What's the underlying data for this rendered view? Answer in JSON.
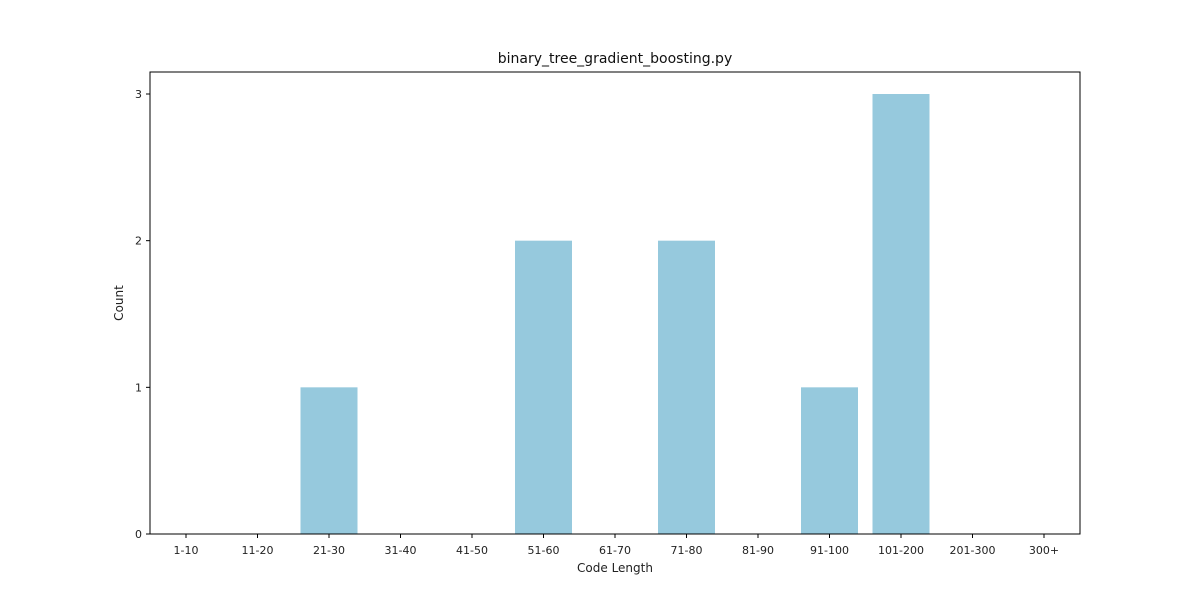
{
  "chart_data": {
    "type": "bar",
    "title": "binary_tree_gradient_boosting.py",
    "xlabel": "Code Length",
    "ylabel": "Count",
    "categories": [
      "1-10",
      "11-20",
      "21-30",
      "31-40",
      "41-50",
      "51-60",
      "61-70",
      "71-80",
      "81-90",
      "91-100",
      "101-200",
      "201-300",
      "300+"
    ],
    "values": [
      0,
      0,
      1,
      0,
      0,
      2,
      0,
      2,
      0,
      1,
      3,
      0,
      0
    ],
    "ylim": [
      0,
      3.15
    ],
    "yticks": [
      0,
      1,
      2,
      3
    ],
    "bar_color": "#96c9dd",
    "grid": false,
    "legend": "none"
  }
}
